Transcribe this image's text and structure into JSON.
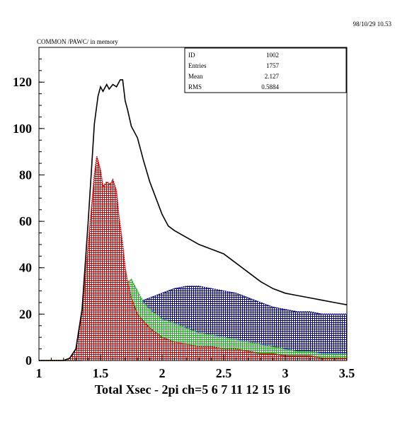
{
  "header": {
    "datetime": "98/10/29   10.53",
    "memory_label": "COMMON /PAWC/ in memory"
  },
  "stats_box": {
    "rows": [
      {
        "label": "ID",
        "value": "1002"
      },
      {
        "label": "Entries",
        "value": "1757"
      },
      {
        "label": "Mean",
        "value": "2.127"
      },
      {
        "label": "RMS",
        "value": "0.5884"
      }
    ]
  },
  "chart_data": {
    "type": "area",
    "title": "",
    "xlabel": "Total Xsec - 2pi ch=5 6 7 11 12 15 16",
    "ylabel": "",
    "xlim": [
      1,
      3.5
    ],
    "ylim": [
      0,
      135
    ],
    "x_ticks": [
      "1",
      "1.5",
      "2",
      "2.5",
      "3",
      "3.5"
    ],
    "y_ticks": [
      "0",
      "20",
      "40",
      "60",
      "80",
      "100",
      "120"
    ],
    "grid": false,
    "series": [
      {
        "color": "#000000",
        "fill": false,
        "points": [
          [
            1.0,
            0
          ],
          [
            1.2,
            0
          ],
          [
            1.25,
            1
          ],
          [
            1.3,
            5
          ],
          [
            1.35,
            22
          ],
          [
            1.4,
            60
          ],
          [
            1.45,
            102
          ],
          [
            1.48,
            114
          ],
          [
            1.5,
            118
          ],
          [
            1.52,
            116
          ],
          [
            1.55,
            119
          ],
          [
            1.57,
            117
          ],
          [
            1.6,
            119
          ],
          [
            1.63,
            118
          ],
          [
            1.66,
            121
          ],
          [
            1.68,
            121
          ],
          [
            1.7,
            112
          ],
          [
            1.72,
            108
          ],
          [
            1.75,
            101
          ],
          [
            1.8,
            96
          ],
          [
            1.85,
            86
          ],
          [
            1.9,
            77
          ],
          [
            1.95,
            70
          ],
          [
            2.0,
            63
          ],
          [
            2.05,
            58
          ],
          [
            2.1,
            56
          ],
          [
            2.2,
            53
          ],
          [
            2.3,
            50
          ],
          [
            2.4,
            48
          ],
          [
            2.5,
            46
          ],
          [
            2.6,
            42
          ],
          [
            2.7,
            38
          ],
          [
            2.8,
            34
          ],
          [
            2.9,
            31
          ],
          [
            3.0,
            29
          ],
          [
            3.1,
            28
          ],
          [
            3.2,
            27
          ],
          [
            3.3,
            26
          ],
          [
            3.4,
            25
          ],
          [
            3.5,
            24
          ]
        ]
      },
      {
        "color": "#cc0000",
        "fill": true,
        "points": [
          [
            1.0,
            0
          ],
          [
            1.2,
            0
          ],
          [
            1.25,
            1
          ],
          [
            1.3,
            5
          ],
          [
            1.35,
            20
          ],
          [
            1.4,
            50
          ],
          [
            1.45,
            80
          ],
          [
            1.47,
            88
          ],
          [
            1.5,
            82
          ],
          [
            1.52,
            75
          ],
          [
            1.55,
            77
          ],
          [
            1.58,
            76
          ],
          [
            1.6,
            78
          ],
          [
            1.63,
            73
          ],
          [
            1.65,
            62
          ],
          [
            1.68,
            50
          ],
          [
            1.7,
            40
          ],
          [
            1.72,
            34
          ],
          [
            1.75,
            27
          ],
          [
            1.8,
            20
          ],
          [
            1.9,
            14
          ],
          [
            2.0,
            10
          ],
          [
            2.1,
            8
          ],
          [
            2.2,
            7
          ],
          [
            2.3,
            6
          ],
          [
            2.4,
            6
          ],
          [
            2.5,
            5
          ],
          [
            2.6,
            5
          ],
          [
            2.7,
            4
          ],
          [
            2.8,
            3
          ],
          [
            2.9,
            3
          ],
          [
            3.0,
            2
          ],
          [
            3.1,
            2
          ],
          [
            3.2,
            2
          ],
          [
            3.3,
            1
          ],
          [
            3.4,
            1
          ],
          [
            3.5,
            1
          ]
        ]
      },
      {
        "color": "#22aa22",
        "fill": true,
        "points": [
          [
            1.0,
            0
          ],
          [
            1.3,
            0
          ],
          [
            1.35,
            1
          ],
          [
            1.4,
            3
          ],
          [
            1.45,
            8
          ],
          [
            1.5,
            14
          ],
          [
            1.55,
            20
          ],
          [
            1.6,
            24
          ],
          [
            1.65,
            28
          ],
          [
            1.7,
            33
          ],
          [
            1.75,
            35
          ],
          [
            1.8,
            30
          ],
          [
            1.85,
            25
          ],
          [
            1.9,
            22
          ],
          [
            2.0,
            18
          ],
          [
            2.1,
            16
          ],
          [
            2.2,
            14
          ],
          [
            2.3,
            12
          ],
          [
            2.4,
            11
          ],
          [
            2.5,
            10
          ],
          [
            2.6,
            9
          ],
          [
            2.7,
            8
          ],
          [
            2.8,
            7
          ],
          [
            2.9,
            6
          ],
          [
            3.0,
            5
          ],
          [
            3.1,
            4
          ],
          [
            3.2,
            4
          ],
          [
            3.3,
            3
          ],
          [
            3.4,
            3
          ],
          [
            3.5,
            3
          ]
        ]
      },
      {
        "color": "#000099",
        "fill": true,
        "points": [
          [
            1.0,
            0
          ],
          [
            1.35,
            0
          ],
          [
            1.4,
            2
          ],
          [
            1.45,
            5
          ],
          [
            1.5,
            10
          ],
          [
            1.55,
            16
          ],
          [
            1.58,
            18
          ],
          [
            1.6,
            15
          ],
          [
            1.65,
            17
          ],
          [
            1.7,
            20
          ],
          [
            1.75,
            24
          ],
          [
            1.8,
            25
          ],
          [
            1.9,
            27
          ],
          [
            2.0,
            29
          ],
          [
            2.1,
            31
          ],
          [
            2.2,
            32
          ],
          [
            2.3,
            32
          ],
          [
            2.4,
            31
          ],
          [
            2.5,
            30
          ],
          [
            2.6,
            29
          ],
          [
            2.7,
            27
          ],
          [
            2.8,
            25
          ],
          [
            2.9,
            23
          ],
          [
            3.0,
            22
          ],
          [
            3.1,
            21
          ],
          [
            3.2,
            21
          ],
          [
            3.3,
            20
          ],
          [
            3.4,
            20
          ],
          [
            3.5,
            20
          ]
        ]
      }
    ]
  }
}
